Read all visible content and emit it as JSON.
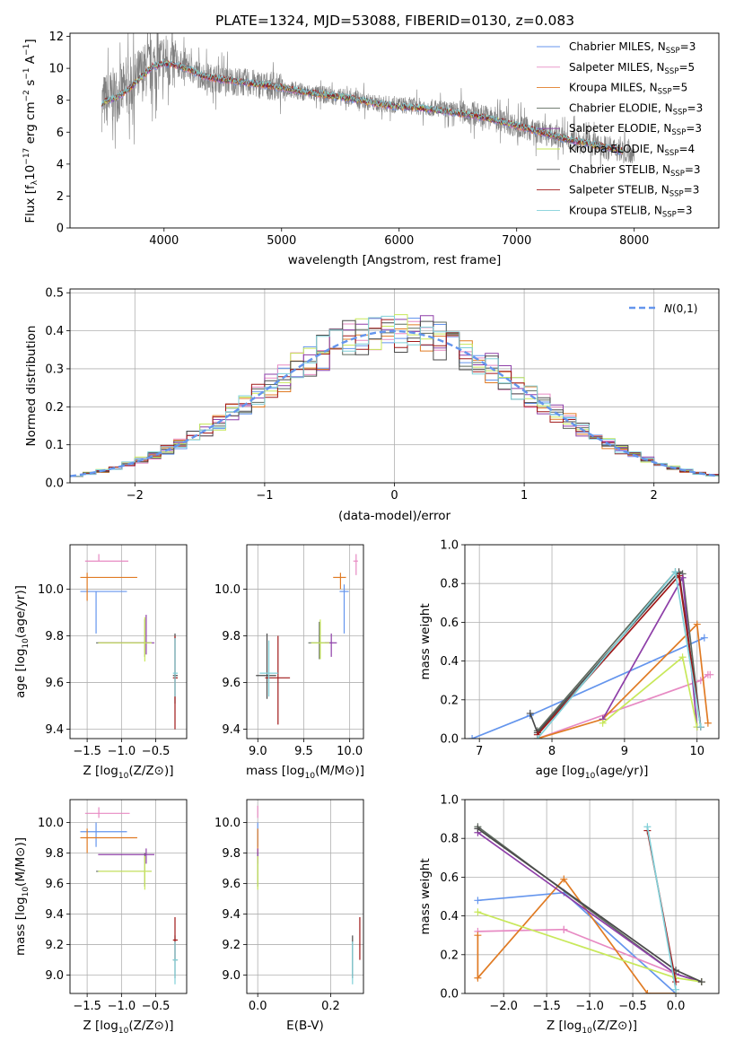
{
  "title": "PLATE=1324, MJD=53088, FIBERID=0130, z=0.083",
  "colors": {
    "spectrum": "#808080",
    "m1": "#6495ed",
    "m2": "#e78ac3",
    "m3": "#e07b24",
    "m4": "#5f6b5f",
    "m5": "#8e3fa8",
    "m6": "#c8e85a",
    "m7": "#4a4a4a",
    "m8": "#a01818",
    "m9": "#80d0d8"
  },
  "models": [
    {
      "name": "Chabrier MILES",
      "n": "3",
      "key": "m1"
    },
    {
      "name": "Salpeter MILES",
      "n": "5",
      "key": "m2"
    },
    {
      "name": "Kroupa MILES",
      "n": "5",
      "key": "m3"
    },
    {
      "name": "Chabrier ELODIE",
      "n": "3",
      "key": "m4"
    },
    {
      "name": "Salpeter ELODIE",
      "n": "3",
      "key": "m5"
    },
    {
      "name": "Kroupa ELODIE",
      "n": "4",
      "key": "m6"
    },
    {
      "name": "Chabrier STELIB",
      "n": "3",
      "key": "m7"
    },
    {
      "name": "Salpeter STELIB",
      "n": "3",
      "key": "m8"
    },
    {
      "name": "Kroupa STELIB",
      "n": "3",
      "key": "m9"
    }
  ],
  "legend_n_label": "N",
  "legend_n_sub": "SSP",
  "chart_data": [
    {
      "id": "spectrum",
      "type": "line",
      "xlabel": "wavelength [Angstrom, rest frame]",
      "ylabel_main": "Flux [f",
      "ylabel_sub": "λ",
      "ylabel_rest": "10",
      "ylabel_exp1": "−17",
      "ylabel_unit1": " erg cm",
      "ylabel_exp2": "−2",
      "ylabel_unit2": " s",
      "ylabel_exp3": "−1",
      "ylabel_unit3": " A",
      "ylabel_exp4": "−1",
      "ylabel_end": "]",
      "xlim": [
        3200,
        8720
      ],
      "ylim": [
        0,
        12.2
      ],
      "xticks": [
        4000,
        5000,
        6000,
        7000,
        8000
      ],
      "yticks": [
        0,
        2,
        4,
        6,
        8,
        10,
        12
      ],
      "data_trend": {
        "x": [
          3470,
          3600,
          3700,
          3800,
          3900,
          4000,
          4100,
          4200,
          4300,
          4400,
          4600,
          4800,
          5000,
          5200,
          5400,
          5600,
          5800,
          6000,
          6200,
          6400,
          6600,
          6800,
          7000,
          7200,
          7400,
          7600,
          7800,
          7900
        ],
        "y": [
          7.8,
          8.4,
          8.8,
          9.6,
          10.2,
          10.5,
          10.3,
          10.1,
          9.6,
          9.4,
          9.2,
          9.0,
          8.8,
          8.5,
          8.3,
          8.1,
          7.8,
          7.7,
          7.6,
          7.4,
          7.2,
          6.9,
          6.4,
          6.0,
          5.6,
          5.3,
          5.0,
          4.8
        ]
      },
      "model_trend": {
        "x": [
          3470,
          3600,
          3700,
          3800,
          3900,
          4000,
          4100,
          4200,
          4300,
          4400,
          4600,
          4800,
          5000,
          5200,
          5400,
          5600,
          5800,
          6000,
          6200,
          6400,
          6600,
          6800,
          7000,
          7200,
          7400,
          7600,
          7800,
          7900
        ],
        "y": [
          7.8,
          8.2,
          8.7,
          9.4,
          10.1,
          10.3,
          10.2,
          10.0,
          9.6,
          9.4,
          9.2,
          9.0,
          8.8,
          8.5,
          8.3,
          8.1,
          7.8,
          7.6,
          7.5,
          7.3,
          7.1,
          6.8,
          6.4,
          6.0,
          5.6,
          5.3,
          5.0,
          4.8
        ]
      }
    },
    {
      "id": "residual-histogram",
      "type": "histogram",
      "xlabel": "(data-model)/error",
      "ylabel": "Normed distribution",
      "xlim": [
        -2.5,
        2.5
      ],
      "ylim": [
        0,
        0.51
      ],
      "xticks": [
        -2,
        -1,
        0,
        1,
        2
      ],
      "yticks": [
        0.0,
        0.1,
        0.2,
        0.3,
        0.4,
        0.5
      ],
      "bin_width": 0.1,
      "bin_start": -2.5,
      "reference_label": "N(0,1)",
      "reference_curve": {
        "type": "gaussian",
        "mu": 0,
        "sigma": 1
      }
    },
    {
      "id": "age-vs-Z",
      "type": "scatter-errorbar",
      "xlabel": "Z [log10(Z/Z⊙)]",
      "ylabel": "age  [log10(age/yr)]",
      "xlim": [
        -1.75,
        -0.05
      ],
      "ylim": [
        9.36,
        10.19
      ],
      "xticks": [
        -1.5,
        -1.0,
        -0.5
      ],
      "yticks": [
        9.4,
        9.6,
        9.8,
        10.0
      ],
      "points": [
        {
          "key": "m1",
          "x": -1.37,
          "y": 9.99,
          "xerr": [
            0.23,
            0.45
          ],
          "yerr": [
            0.18,
            0.0
          ]
        },
        {
          "key": "m2",
          "x": -1.33,
          "y": 10.12,
          "xerr": [
            0.2,
            0.43
          ],
          "yerr": [
            0.0,
            0.03
          ]
        },
        {
          "key": "m3",
          "x": -1.5,
          "y": 10.05,
          "xerr": [
            0.1,
            0.73
          ],
          "yerr": [
            0.1,
            0.02
          ]
        },
        {
          "key": "m4",
          "x": -0.66,
          "y": 9.77,
          "xerr": [
            0.71,
            0.1
          ],
          "yerr": [
            0.06,
            0.1
          ]
        },
        {
          "key": "m5",
          "x": -0.64,
          "y": 9.77,
          "xerr": [
            0.7,
            0.12
          ],
          "yerr": [
            0.05,
            0.12
          ]
        },
        {
          "key": "m6",
          "x": -0.66,
          "y": 9.77,
          "xerr": [
            0.68,
            0.1
          ],
          "yerr": [
            0.08,
            0.11
          ]
        },
        {
          "key": "m7",
          "x": -0.22,
          "y": 9.63,
          "xerr": [
            0.03,
            0.04
          ],
          "yerr": [
            0.12,
            0.18
          ]
        },
        {
          "key": "m8",
          "x": -0.22,
          "y": 9.62,
          "xerr": [
            0.03,
            0.04
          ],
          "yerr": [
            0.22,
            0.18
          ]
        },
        {
          "key": "m9",
          "x": -0.22,
          "y": 9.64,
          "xerr": [
            0.03,
            0.04
          ],
          "yerr": [
            0.1,
            0.15
          ]
        }
      ]
    },
    {
      "id": "age-vs-mass",
      "type": "scatter-errorbar",
      "xlabel": "mass [log10(M/M⊙)]",
      "ylabel": "",
      "xlim": [
        8.88,
        10.15
      ],
      "ylim": [
        9.36,
        10.19
      ],
      "xticks": [
        9.0,
        9.5,
        10.0
      ],
      "yticks": [
        9.4,
        9.6,
        9.8,
        10.0
      ],
      "points": [
        {
          "key": "m1",
          "x": 9.94,
          "y": 9.99,
          "xerr": [
            0.05,
            0.05
          ],
          "yerr": [
            0.18,
            0.03
          ]
        },
        {
          "key": "m2",
          "x": 10.07,
          "y": 10.12,
          "xerr": [
            0.03,
            0.02
          ],
          "yerr": [
            0.06,
            0.03
          ]
        },
        {
          "key": "m3",
          "x": 9.9,
          "y": 10.05,
          "xerr": [
            0.08,
            0.06
          ],
          "yerr": [
            0.05,
            0.02
          ]
        },
        {
          "key": "m4",
          "x": 9.67,
          "y": 9.77,
          "xerr": [
            0.12,
            0.12
          ],
          "yerr": [
            0.07,
            0.09
          ]
        },
        {
          "key": "m5",
          "x": 9.8,
          "y": 9.77,
          "xerr": [
            0.07,
            0.06
          ],
          "yerr": [
            0.06,
            0.04
          ]
        },
        {
          "key": "m6",
          "x": 9.68,
          "y": 9.77,
          "xerr": [
            0.1,
            0.1
          ],
          "yerr": [
            0.07,
            0.1
          ]
        },
        {
          "key": "m7",
          "x": 9.1,
          "y": 9.63,
          "xerr": [
            0.12,
            0.1
          ],
          "yerr": [
            0.1,
            0.18
          ]
        },
        {
          "key": "m8",
          "x": 9.22,
          "y": 9.62,
          "xerr": [
            0.14,
            0.13
          ],
          "yerr": [
            0.2,
            0.18
          ]
        },
        {
          "key": "m9",
          "x": 9.12,
          "y": 9.64,
          "xerr": [
            0.1,
            0.1
          ],
          "yerr": [
            0.1,
            0.14
          ]
        }
      ]
    },
    {
      "id": "mass-weight-vs-age",
      "type": "line",
      "xlabel": "age  [log10(age/yr)]",
      "ylabel": "mass weight",
      "xlim": [
        6.8,
        10.3
      ],
      "ylim": [
        0,
        1.0
      ],
      "xticks": [
        7,
        8,
        9,
        10
      ],
      "yticks": [
        0.0,
        0.2,
        0.4,
        0.6,
        0.8,
        1.0
      ],
      "series": [
        {
          "key": "m1",
          "x": [
            6.9,
            7.7,
            10.1
          ],
          "y": [
            0.0,
            0.12,
            0.52
          ]
        },
        {
          "key": "m2",
          "x": [
            7.8,
            10.05,
            10.15,
            10.18
          ],
          "y": [
            0.0,
            0.3,
            0.33,
            0.33
          ]
        },
        {
          "key": "m3",
          "x": [
            7.8,
            8.7,
            10.0,
            10.15
          ],
          "y": [
            0.0,
            0.1,
            0.59,
            0.08
          ]
        },
        {
          "key": "m4",
          "x": [
            7.8,
            9.7,
            9.8,
            10.05
          ],
          "y": [
            0.04,
            0.86,
            0.85,
            0.06
          ]
        },
        {
          "key": "m5",
          "x": [
            8.7,
            9.8,
            10.0
          ],
          "y": [
            0.1,
            0.83,
            0.06
          ]
        },
        {
          "key": "m6",
          "x": [
            8.7,
            9.8,
            10.0
          ],
          "y": [
            0.08,
            0.42,
            0.06
          ]
        },
        {
          "key": "m7",
          "x": [
            7.7,
            7.8,
            9.75,
            10.05
          ],
          "y": [
            0.13,
            0.03,
            0.86,
            0.06
          ]
        },
        {
          "key": "m8",
          "x": [
            7.8,
            9.75,
            10.05
          ],
          "y": [
            0.02,
            0.84,
            0.06
          ]
        },
        {
          "key": "m9",
          "x": [
            7.8,
            9.7,
            10.05
          ],
          "y": [
            0.0,
            0.86,
            0.06
          ]
        }
      ]
    },
    {
      "id": "mass-vs-Z",
      "type": "scatter-errorbar",
      "xlabel": "Z [log10(Z/Z⊙)]",
      "ylabel": "mass [log10(M/M⊙)]",
      "xlim": [
        -1.75,
        -0.05
      ],
      "ylim": [
        8.88,
        10.15
      ],
      "xticks": [
        -1.5,
        -1.0,
        -0.5
      ],
      "yticks": [
        9.0,
        9.2,
        9.4,
        9.6,
        9.8,
        10.0
      ],
      "points": [
        {
          "key": "m1",
          "x": -1.37,
          "y": 9.94,
          "xerr": [
            0.23,
            0.45
          ],
          "yerr": [
            0.1,
            0.06
          ]
        },
        {
          "key": "m2",
          "x": -1.33,
          "y": 10.06,
          "xerr": [
            0.2,
            0.45
          ],
          "yerr": [
            0.03,
            0.04
          ]
        },
        {
          "key": "m3",
          "x": -1.5,
          "y": 9.9,
          "xerr": [
            0.1,
            0.73
          ],
          "yerr": [
            0.1,
            0.06
          ]
        },
        {
          "key": "m4",
          "x": -0.66,
          "y": 9.68,
          "xerr": [
            0.71,
            0.1
          ],
          "yerr": [
            0.1,
            0.12
          ]
        },
        {
          "key": "m5",
          "x": -0.64,
          "y": 9.79,
          "xerr": [
            0.7,
            0.12
          ],
          "yerr": [
            0.06,
            0.04
          ]
        },
        {
          "key": "m6",
          "x": -0.66,
          "y": 9.68,
          "xerr": [
            0.68,
            0.1
          ],
          "yerr": [
            0.12,
            0.1
          ]
        },
        {
          "key": "m7",
          "x": -0.22,
          "y": 9.1,
          "xerr": [
            0.03,
            0.04
          ],
          "yerr": [
            0.12,
            0.16
          ]
        },
        {
          "key": "m8",
          "x": -0.22,
          "y": 9.23,
          "xerr": [
            0.03,
            0.04
          ],
          "yerr": [
            0.13,
            0.15
          ]
        },
        {
          "key": "m9",
          "x": -0.22,
          "y": 9.1,
          "xerr": [
            0.03,
            0.04
          ],
          "yerr": [
            0.16,
            0.12
          ]
        }
      ]
    },
    {
      "id": "mass-vs-EBV",
      "type": "scatter-errorbar",
      "xlabel": "E(B-V)",
      "ylabel": "",
      "xlim": [
        -0.03,
        0.29
      ],
      "ylim": [
        8.88,
        10.15
      ],
      "xticks": [
        0.0,
        0.2
      ],
      "yticks": [
        9.0,
        9.2,
        9.4,
        9.6,
        9.8,
        10.0
      ],
      "points": [
        {
          "key": "m1",
          "x": 0.0,
          "y": 9.94,
          "xerr": [
            0.0,
            0.0
          ],
          "yerr": [
            0.1,
            0.06
          ]
        },
        {
          "key": "m2",
          "x": 0.0,
          "y": 10.06,
          "xerr": [
            0.0,
            0.0
          ],
          "yerr": [
            0.03,
            0.05
          ]
        },
        {
          "key": "m3",
          "x": 0.0,
          "y": 9.9,
          "xerr": [
            0.0,
            0.0
          ],
          "yerr": [
            0.1,
            0.06
          ]
        },
        {
          "key": "m4",
          "x": 0.0,
          "y": 9.68,
          "xerr": [
            0.0,
            0.0
          ],
          "yerr": [
            0.1,
            0.12
          ]
        },
        {
          "key": "m5",
          "x": 0.0,
          "y": 9.79,
          "xerr": [
            0.0,
            0.0
          ],
          "yerr": [
            0.06,
            0.04
          ]
        },
        {
          "key": "m6",
          "x": 0.0,
          "y": 9.68,
          "xerr": [
            0.0,
            0.0
          ],
          "yerr": [
            0.12,
            0.1
          ]
        },
        {
          "key": "m7",
          "x": 0.26,
          "y": 9.1,
          "xerr": [
            0.0,
            0.0
          ],
          "yerr": [
            0.12,
            0.16
          ]
        },
        {
          "key": "m8",
          "x": 0.28,
          "y": 9.23,
          "xerr": [
            0.0,
            0.0
          ],
          "yerr": [
            0.13,
            0.15
          ]
        },
        {
          "key": "m9",
          "x": 0.26,
          "y": 9.1,
          "xerr": [
            0.0,
            0.0
          ],
          "yerr": [
            0.16,
            0.12
          ]
        }
      ]
    },
    {
      "id": "mass-weight-vs-Z",
      "type": "line",
      "xlabel": "Z [log10(Z/Z⊙)]",
      "ylabel": "mass weight",
      "xlim": [
        -2.45,
        0.5
      ],
      "ylim": [
        0,
        1.0
      ],
      "xticks": [
        -2.0,
        -1.5,
        -1.0,
        -0.5,
        0.0
      ],
      "yticks": [
        0.0,
        0.2,
        0.4,
        0.6,
        0.8,
        1.0
      ],
      "series": [
        {
          "key": "m1",
          "x": [
            -2.3,
            -1.3,
            0.0
          ],
          "y": [
            0.48,
            0.52,
            0.0
          ]
        },
        {
          "key": "m2",
          "x": [
            -2.3,
            -1.3,
            -1.3,
            0.0,
            0.0
          ],
          "y": [
            0.32,
            0.33,
            0.33,
            0.1,
            0.08
          ]
        },
        {
          "key": "m3",
          "x": [
            -2.3,
            -2.3,
            -1.3,
            -0.33,
            0.0
          ],
          "y": [
            0.3,
            0.08,
            0.59,
            0.0,
            0.0
          ]
        },
        {
          "key": "m4",
          "x": [
            -2.3,
            0.0,
            0.3
          ],
          "y": [
            0.86,
            0.1,
            0.06
          ]
        },
        {
          "key": "m5",
          "x": [
            -2.3,
            0.0,
            0.3
          ],
          "y": [
            0.83,
            0.1,
            0.06
          ]
        },
        {
          "key": "m6",
          "x": [
            -2.3,
            0.0,
            0.3
          ],
          "y": [
            0.42,
            0.08,
            0.06
          ]
        },
        {
          "key": "m7",
          "x": [
            -2.3,
            0.0,
            0.3
          ],
          "y": [
            0.85,
            0.12,
            0.06
          ]
        },
        {
          "key": "m8",
          "x": [
            -0.33,
            0.0
          ],
          "y": [
            0.84,
            0.06
          ]
        },
        {
          "key": "m9",
          "x": [
            -0.33,
            0.0
          ],
          "y": [
            0.86,
            0.02
          ]
        }
      ]
    }
  ]
}
